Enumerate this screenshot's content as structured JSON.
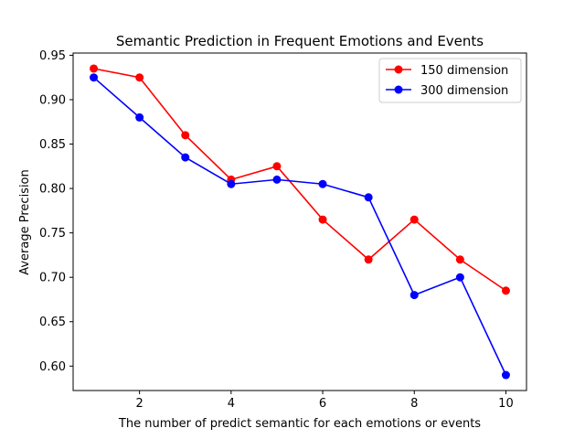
{
  "chart_data": {
    "type": "line",
    "title": "Semantic Prediction in Frequent Emotions and Events",
    "xlabel": "The number of predict semantic for each emotions or events",
    "ylabel": "Average Precision",
    "xlim": [
      0.55,
      10.45
    ],
    "ylim": [
      0.5725,
      0.9525
    ],
    "x_ticks": [
      2,
      4,
      6,
      8,
      10
    ],
    "x_tick_labels": [
      "2",
      "4",
      "6",
      "8",
      "10"
    ],
    "y_ticks": [
      0.6,
      0.65,
      0.7,
      0.75,
      0.8,
      0.85,
      0.9,
      0.95
    ],
    "y_tick_labels": [
      "0.60",
      "0.65",
      "0.70",
      "0.75",
      "0.80",
      "0.85",
      "0.90",
      "0.95"
    ],
    "grid": false,
    "legend_position": "top-right",
    "x": [
      1,
      2,
      3,
      4,
      5,
      6,
      7,
      8,
      9,
      10
    ],
    "series": [
      {
        "name": "150 dimension",
        "color": "#ff0000",
        "marker": "circle",
        "values": [
          0.935,
          0.925,
          0.86,
          0.81,
          0.825,
          0.765,
          0.72,
          0.765,
          0.72,
          0.685
        ]
      },
      {
        "name": "300 dimension",
        "color": "#0000ff",
        "marker": "circle",
        "values": [
          0.925,
          0.88,
          0.835,
          0.805,
          0.81,
          0.805,
          0.79,
          0.68,
          0.7,
          0.59
        ]
      }
    ]
  }
}
